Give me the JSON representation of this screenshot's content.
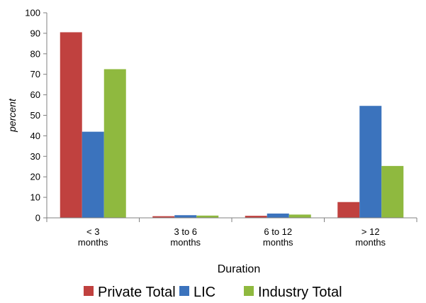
{
  "chart_data": {
    "type": "bar",
    "categories": [
      "< 3\nmonths",
      "3 to 6\nmonths",
      "6 to 12\nmonths",
      "> 12\nmonths"
    ],
    "series": [
      {
        "name": "Private Total",
        "color": "#c0413f",
        "values": [
          90.5,
          0.8,
          1.0,
          7.7
        ]
      },
      {
        "name": "LIC",
        "color": "#3b73bd",
        "values": [
          42.0,
          1.3,
          2.1,
          54.6
        ]
      },
      {
        "name": "Industry Total",
        "color": "#8fb93f",
        "values": [
          72.5,
          1.1,
          1.6,
          25.3
        ]
      }
    ],
    "title": "",
    "xlabel": "Duration",
    "ylabel": "percent",
    "ylim": [
      0,
      100
    ],
    "yticks": [
      "0",
      "10",
      "20",
      "30",
      "40",
      "50",
      "60",
      "70",
      "80",
      "90",
      "100"
    ],
    "grid": false,
    "legend": "bottom"
  }
}
